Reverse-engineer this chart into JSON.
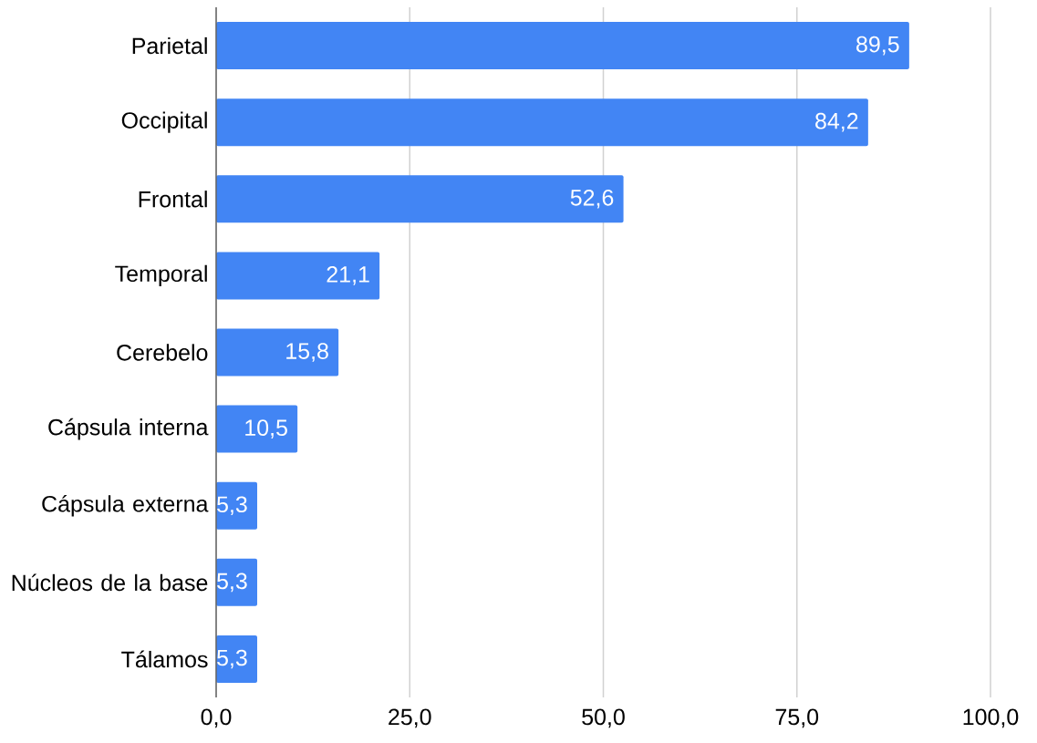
{
  "chart_data": {
    "type": "bar",
    "orientation": "horizontal",
    "categories": [
      "Parietal",
      "Occipital",
      "Frontal",
      "Temporal",
      "Cerebelo",
      "Cápsula interna",
      "Cápsula externa",
      "Núcleos de la base",
      "Tálamos"
    ],
    "values": [
      89.5,
      84.2,
      52.6,
      21.1,
      15.8,
      10.5,
      5.3,
      5.3,
      5.3
    ],
    "value_labels": [
      "89,5",
      "84,2",
      "52,6",
      "21,1",
      "15,8",
      "10,5",
      "5,3",
      "5,3",
      "5,3"
    ],
    "color": "#4285f4",
    "xlim": [
      0,
      100
    ],
    "xticks": [
      {
        "value": 0,
        "label": "0,0"
      },
      {
        "value": 25,
        "label": "25,0"
      },
      {
        "value": 50,
        "label": "50,0"
      },
      {
        "value": 75,
        "label": "75,0"
      },
      {
        "value": 100,
        "label": "100,0"
      }
    ],
    "grid": "x"
  }
}
